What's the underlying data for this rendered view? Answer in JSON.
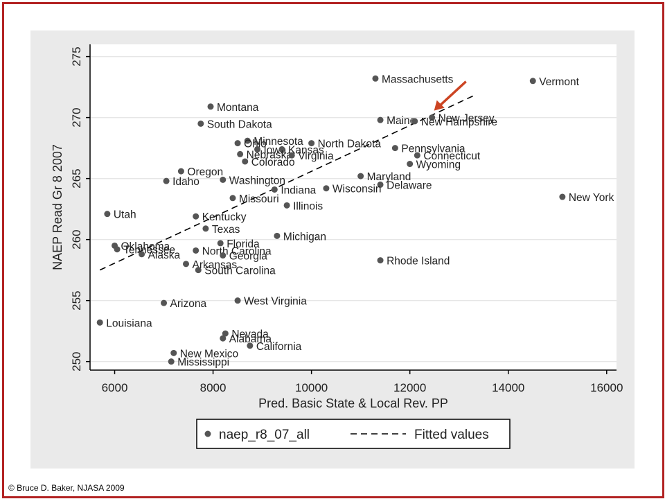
{
  "credit": "© Bruce D. Baker, NJASA 2009",
  "colors": {
    "frame": "#b22222",
    "panel": "#eaeaea",
    "plot_bg": "#ffffff",
    "marker": "#555555",
    "arrow": "#cc4422",
    "grid": "#e6e6e6"
  },
  "chart_data": {
    "type": "scatter",
    "title": "",
    "xlabel": "Pred. Basic State & Local Rev. PP",
    "ylabel": "NAEP Read Gr 8 2007",
    "xlim": [
      5500,
      16200
    ],
    "ylim": [
      249.3,
      276.0
    ],
    "xticks": [
      6000,
      8000,
      10000,
      12000,
      14000,
      16000
    ],
    "yticks": [
      250,
      255,
      260,
      265,
      270,
      275
    ],
    "grid": true,
    "legend": {
      "placement": "bottom-center",
      "entries": [
        {
          "label": "naep_r8_07_all",
          "kind": "marker"
        },
        {
          "label": "Fitted values",
          "kind": "dashed-line"
        }
      ]
    },
    "fit_line": {
      "x": [
        5700,
        13300
      ],
      "y": [
        257.5,
        271.8
      ]
    },
    "annotation": {
      "type": "arrow",
      "target": "New Jersey",
      "color": "#cc4422"
    },
    "points": [
      {
        "name": "Massachusetts",
        "x": 11300,
        "y": 273.2
      },
      {
        "name": "Vermont",
        "x": 14500,
        "y": 273.0
      },
      {
        "name": "Montana",
        "x": 7950,
        "y": 270.9
      },
      {
        "name": "Maine",
        "x": 11400,
        "y": 269.8
      },
      {
        "name": "New Jersey",
        "x": 12450,
        "y": 270.0
      },
      {
        "name": "New Hampshire",
        "x": 12100,
        "y": 269.7
      },
      {
        "name": "South Dakota",
        "x": 7750,
        "y": 269.5
      },
      {
        "name": "Minnesota",
        "x": 8700,
        "y": 268.1
      },
      {
        "name": "Ohio",
        "x": 8500,
        "y": 267.9
      },
      {
        "name": "North Dakota",
        "x": 10000,
        "y": 267.9
      },
      {
        "name": "Iowa",
        "x": 8900,
        "y": 267.4
      },
      {
        "name": "Kansas",
        "x": 9400,
        "y": 267.4
      },
      {
        "name": "Pennsylvania",
        "x": 11700,
        "y": 267.5
      },
      {
        "name": "Nebraska",
        "x": 8550,
        "y": 267.0
      },
      {
        "name": "Virginia",
        "x": 9600,
        "y": 266.9
      },
      {
        "name": "Connecticut",
        "x": 12150,
        "y": 266.9
      },
      {
        "name": "Colorado",
        "x": 8650,
        "y": 266.4
      },
      {
        "name": "Wyoming",
        "x": 12000,
        "y": 266.2
      },
      {
        "name": "Oregon",
        "x": 7350,
        "y": 265.6
      },
      {
        "name": "Maryland",
        "x": 11000,
        "y": 265.2
      },
      {
        "name": "Idaho",
        "x": 7050,
        "y": 264.8
      },
      {
        "name": "Washington",
        "x": 8200,
        "y": 264.9
      },
      {
        "name": "Delaware",
        "x": 11400,
        "y": 264.5
      },
      {
        "name": "Indiana",
        "x": 9250,
        "y": 264.1
      },
      {
        "name": "Wisconsin",
        "x": 10300,
        "y": 264.2
      },
      {
        "name": "Missouri",
        "x": 8400,
        "y": 263.4
      },
      {
        "name": "New York",
        "x": 15100,
        "y": 263.5
      },
      {
        "name": "Illinois",
        "x": 9500,
        "y": 262.8
      },
      {
        "name": "Utah",
        "x": 5850,
        "y": 262.1
      },
      {
        "name": "Kentucky",
        "x": 7650,
        "y": 261.9
      },
      {
        "name": "Texas",
        "x": 7850,
        "y": 260.9
      },
      {
        "name": "Michigan",
        "x": 9300,
        "y": 260.3
      },
      {
        "name": "Florida",
        "x": 8150,
        "y": 259.7
      },
      {
        "name": "Oklahoma",
        "x": 6000,
        "y": 259.5
      },
      {
        "name": "Tennessee",
        "x": 6050,
        "y": 259.2
      },
      {
        "name": "North Carolina",
        "x": 7650,
        "y": 259.1
      },
      {
        "name": "Alaska",
        "x": 6550,
        "y": 258.8
      },
      {
        "name": "Georgia",
        "x": 8200,
        "y": 258.7
      },
      {
        "name": "Rhode Island",
        "x": 11400,
        "y": 258.3
      },
      {
        "name": "Arkansas",
        "x": 7450,
        "y": 258.0
      },
      {
        "name": "South Carolina",
        "x": 7700,
        "y": 257.5
      },
      {
        "name": "Arizona",
        "x": 7000,
        "y": 254.8
      },
      {
        "name": "West Virginia",
        "x": 8500,
        "y": 255.0
      },
      {
        "name": "Louisiana",
        "x": 5700,
        "y": 253.2
      },
      {
        "name": "Nevada",
        "x": 8250,
        "y": 252.3
      },
      {
        "name": "Alabama",
        "x": 8200,
        "y": 251.9
      },
      {
        "name": "California",
        "x": 8750,
        "y": 251.3
      },
      {
        "name": "New Mexico",
        "x": 7200,
        "y": 250.7
      },
      {
        "name": "Mississippi",
        "x": 7150,
        "y": 250.0
      }
    ]
  }
}
